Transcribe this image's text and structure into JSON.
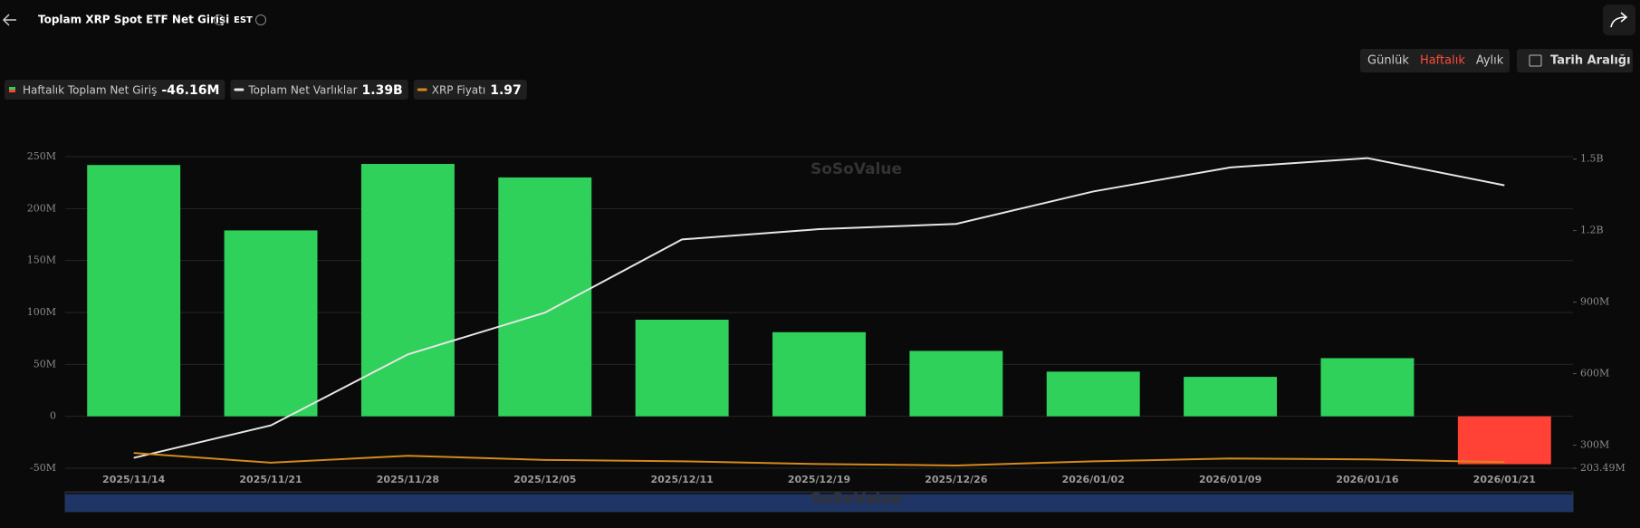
{
  "header": {
    "title": "Toplam XRP Spot ETF Net Girişi",
    "timezone": "EST"
  },
  "controls": {
    "periods": [
      "Günlük",
      "Haftalık",
      "Aylık"
    ],
    "active_period": 1,
    "date_range": "Tarih Aralığı"
  },
  "watermark": "SoSoValue",
  "chart_data": {
    "type": "bar",
    "categories": [
      "2025/11/14",
      "2025/11/21",
      "2025/11/28",
      "2025/12/05",
      "2025/12/11",
      "2025/12/19",
      "2025/12/26",
      "2026/01/02",
      "2026/01/09",
      "2026/01/16",
      "2026/01/21"
    ],
    "series": [
      {
        "name": "Haftalık Toplam Net Giriş",
        "type": "bar",
        "color": "#2fd15a",
        "negative_color": "#ff4136",
        "latest_label": "-46.16M",
        "values": [
          242,
          179,
          243,
          230,
          93,
          81,
          63,
          43,
          38,
          56,
          -46.16
        ]
      },
      {
        "name": "Toplam Net Varlıklar",
        "type": "line",
        "axis": "y2",
        "color": "#e6e6e6",
        "latest_label": "1.39B",
        "values": [
          247,
          383,
          681,
          856,
          1163,
          1206,
          1228,
          1364,
          1465,
          1504,
          1390
        ]
      },
      {
        "name": "XRP Fiyatı",
        "type": "line",
        "axis": "y3",
        "color": "#d4891c",
        "latest_label": "1.97",
        "values": [
          2.3,
          1.95,
          2.2,
          2.05,
          2.0,
          1.9,
          1.85,
          2.0,
          2.1,
          2.07,
          1.97
        ]
      }
    ],
    "ylim": [
      -50,
      250
    ],
    "yticks": [
      {
        "value": -50,
        "label": "-50M"
      },
      0,
      {
        "value": 50,
        "label": "50M"
      },
      {
        "value": 100,
        "label": "100M"
      },
      {
        "value": 150,
        "label": "150M"
      },
      {
        "value": 200,
        "label": "200M"
      },
      {
        "value": 250,
        "label": "250M"
      }
    ],
    "y2lim": [
      203.49,
      1510
    ],
    "y2ticks": [
      {
        "value": 203.49,
        "label": "203.49M"
      },
      {
        "value": 300,
        "label": "300M"
      },
      {
        "value": 600,
        "label": "600M"
      },
      {
        "value": 900,
        "label": "900M"
      },
      {
        "value": 1200,
        "label": "1.2B"
      },
      {
        "value": 1500,
        "label": "1.5B"
      }
    ],
    "y3lim": [
      1.75,
      13
    ],
    "grid": true
  }
}
